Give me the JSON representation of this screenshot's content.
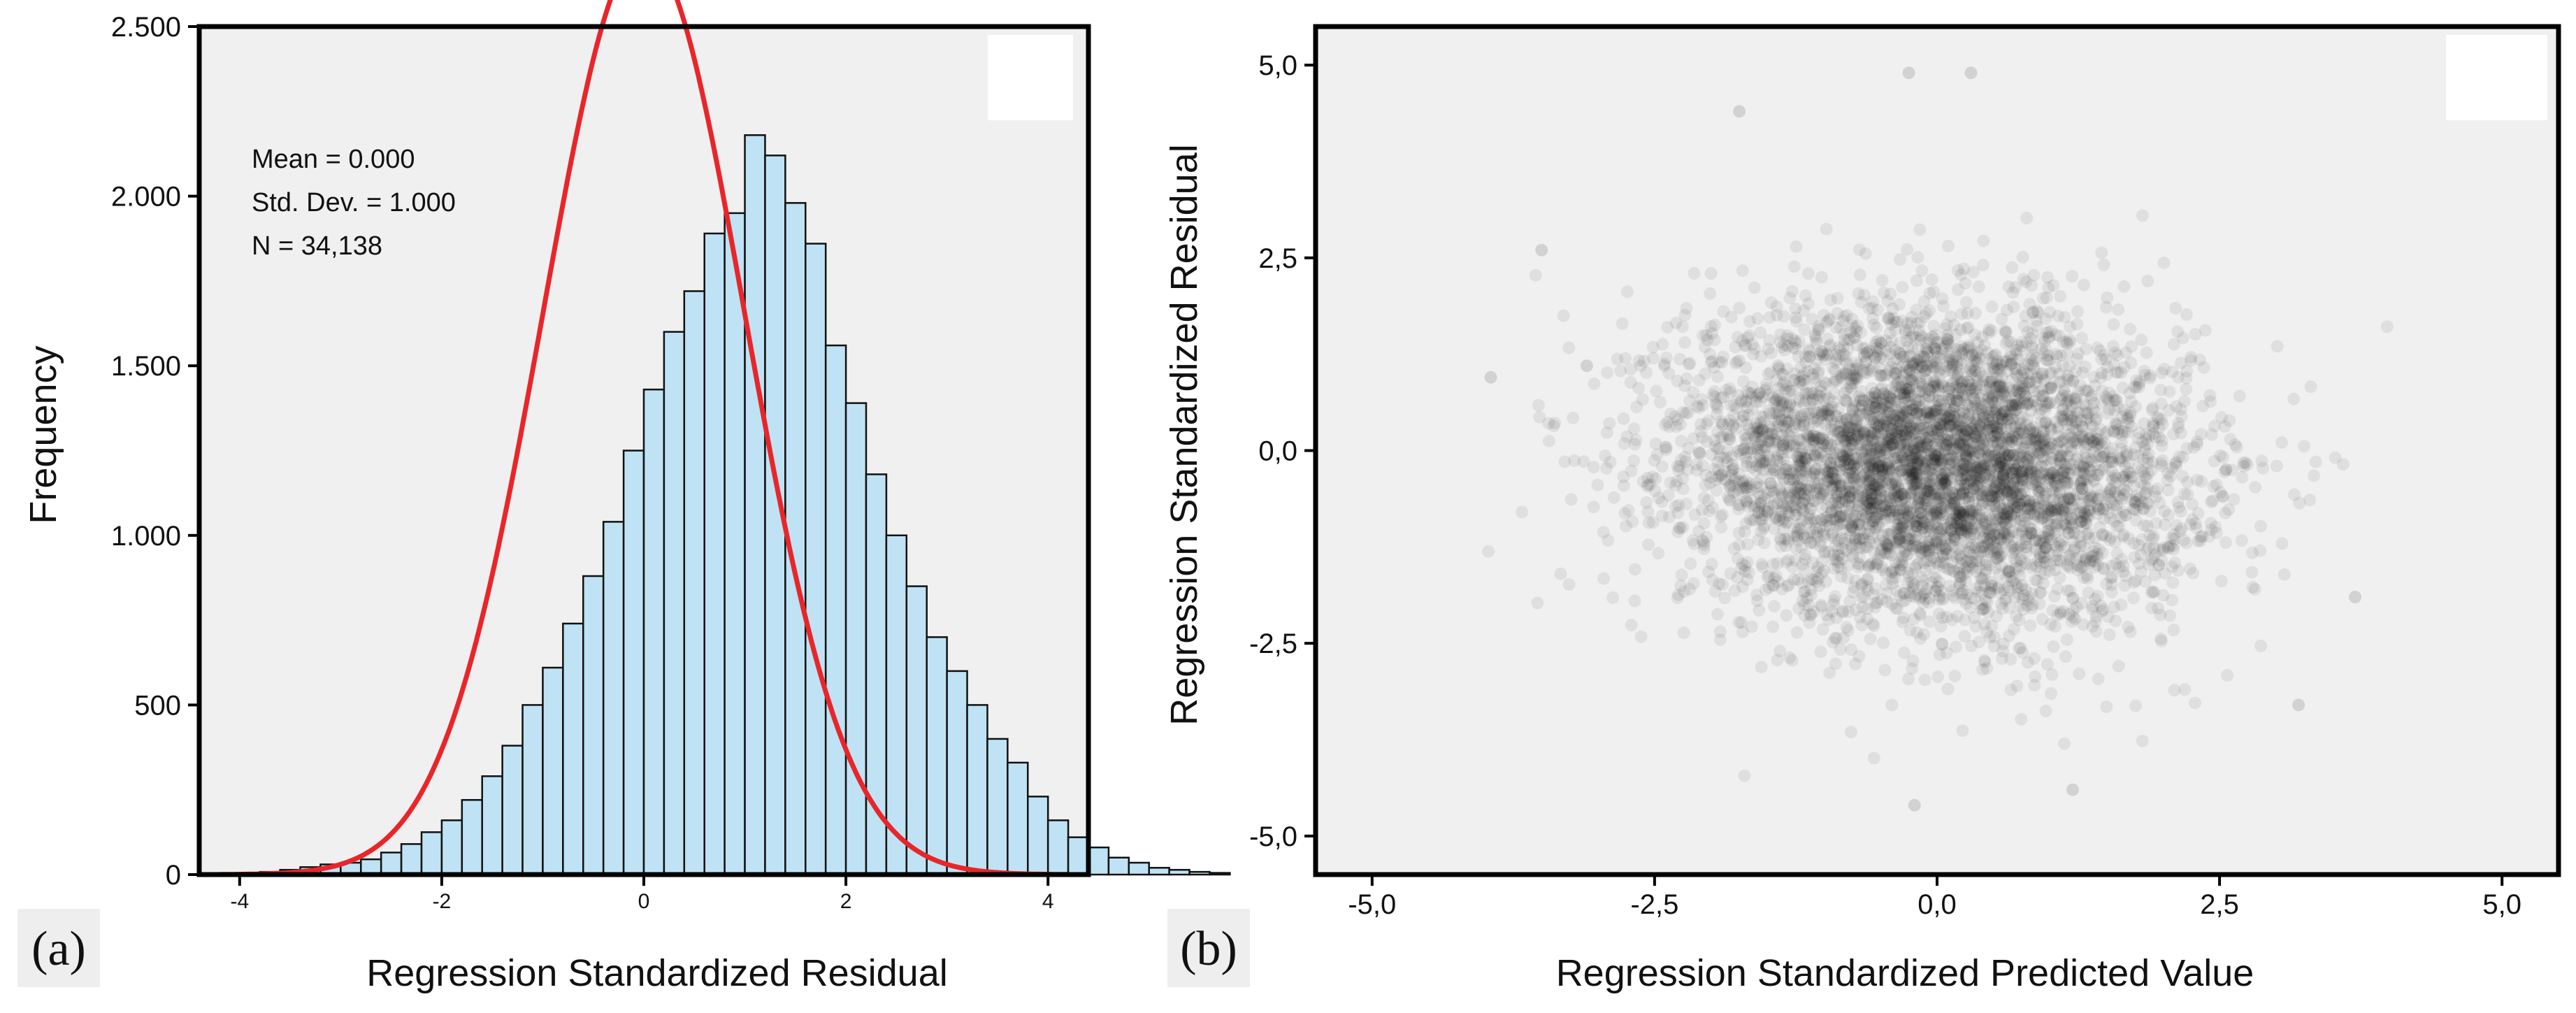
{
  "chart_data": [
    {
      "type": "bar",
      "panel_label": "(a)",
      "title": "",
      "xlabel": "Regression Standardized Residual",
      "ylabel": "Frequency",
      "xlim": [
        -4.4,
        4.4
      ],
      "ylim": [
        0,
        2500
      ],
      "x_ticks": [
        {
          "value": -4,
          "label": "-4"
        },
        {
          "value": -2,
          "label": "-2"
        },
        {
          "value": 0,
          "label": "0"
        },
        {
          "value": 2,
          "label": "2"
        },
        {
          "value": 4,
          "label": "4"
        }
      ],
      "y_ticks": [
        {
          "value": 0,
          "label": "0"
        },
        {
          "value": 500,
          "label": "500"
        },
        {
          "value": 1000,
          "label": "1.000"
        },
        {
          "value": 1500,
          "label": "1.500"
        },
        {
          "value": 2000,
          "label": "2.000"
        },
        {
          "value": 2500,
          "label": "2.500"
        }
      ],
      "bin_start": -4.2,
      "bin_width": 0.2,
      "values": [
        4,
        5,
        8,
        14,
        22,
        30,
        35,
        45,
        65,
        90,
        125,
        160,
        220,
        290,
        380,
        500,
        610,
        740,
        880,
        1040,
        1250,
        1430,
        1600,
        1720,
        1890,
        1950,
        2180,
        2120,
        1980,
        1860,
        1560,
        1390,
        1180,
        1000,
        850,
        700,
        600,
        500,
        400,
        330,
        230,
        160,
        110,
        80,
        50,
        35,
        20,
        14,
        8,
        5
      ],
      "stats": {
        "mean": "Mean = 0.000",
        "std": "Std. Dev. = 1.000",
        "n": "N = 34,138"
      },
      "normal_curve": {
        "mean": 0,
        "sd": 1,
        "n": 34138,
        "bin_width": 0.2,
        "color": "#e8262a"
      },
      "bar_color": "#bfe3f4",
      "background": "#f0f0f0"
    },
    {
      "type": "scatter",
      "panel_label": "(b)",
      "title": "",
      "xlabel": "Regression Standardized Predicted Value",
      "ylabel": "Regression Standardized Residual",
      "xlim": [
        -5.5,
        5.5
      ],
      "ylim": [
        -5.5,
        5.5
      ],
      "x_ticks": [
        {
          "value": -5,
          "label": "-5,0"
        },
        {
          "value": -2.5,
          "label": "-2,5"
        },
        {
          "value": 0,
          "label": "0,0"
        },
        {
          "value": 2.5,
          "label": "2,5"
        },
        {
          "value": 5,
          "label": "5,0"
        }
      ],
      "y_ticks": [
        {
          "value": -5,
          "label": "-5,0"
        },
        {
          "value": -2.5,
          "label": "-2,5"
        },
        {
          "value": 0,
          "label": "0,0"
        },
        {
          "value": 2.5,
          "label": "2,5"
        },
        {
          "value": 5,
          "label": "5,0"
        }
      ],
      "n_points": 34138,
      "cloud": {
        "x_center": 0,
        "x_spread": 1.1,
        "y_center": -0.2,
        "y_spread": 1.0,
        "correlation": -0.1
      },
      "outliers": [
        {
          "x": -3.95,
          "y": 0.95
        },
        {
          "x": -3.5,
          "y": 2.6
        },
        {
          "x": -3.1,
          "y": 1.1
        },
        {
          "x": 0.3,
          "y": 4.9
        },
        {
          "x": -0.25,
          "y": 4.9
        },
        {
          "x": -1.75,
          "y": 4.4
        },
        {
          "x": 3.7,
          "y": -1.9
        },
        {
          "x": 3.2,
          "y": -3.3
        },
        {
          "x": -0.2,
          "y": -4.6
        },
        {
          "x": 1.2,
          "y": -4.4
        }
      ],
      "point_color": "#000000",
      "background": "#f0f0f0"
    }
  ]
}
